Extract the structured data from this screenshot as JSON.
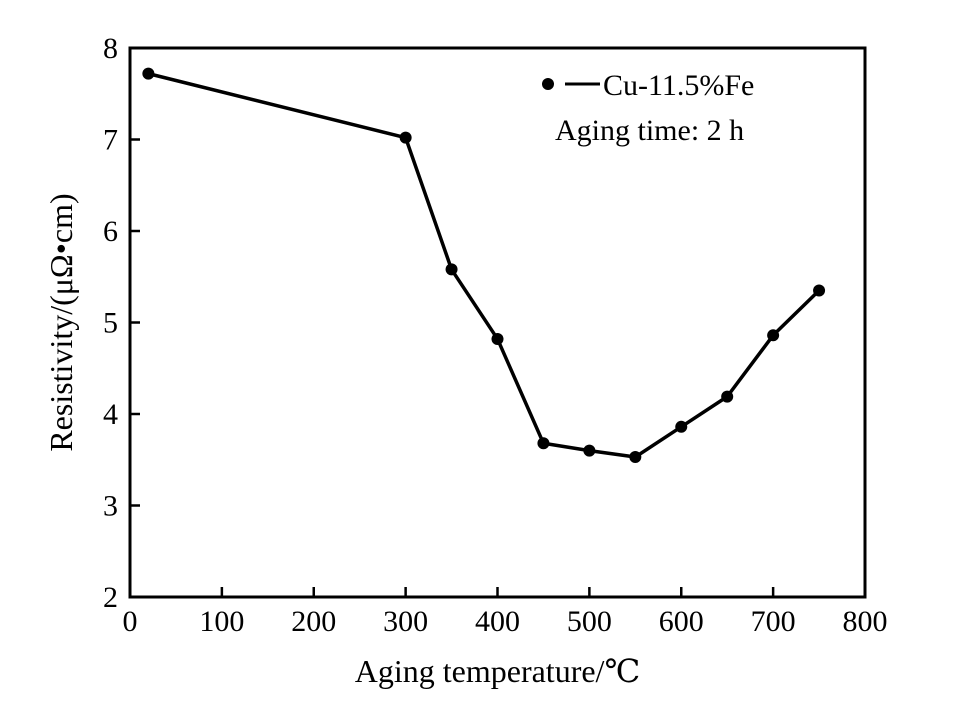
{
  "chart_data": {
    "type": "line",
    "title": "",
    "xlabel": "Aging temperature/℃",
    "ylabel": "Resistivity/(μΩ•cm)",
    "xlim": [
      0,
      800
    ],
    "ylim": [
      2,
      8
    ],
    "xticks": [
      0,
      100,
      200,
      300,
      400,
      500,
      600,
      700,
      800
    ],
    "yticks": [
      2,
      3,
      4,
      5,
      6,
      7,
      8
    ],
    "grid": false,
    "legend_position": "top-right",
    "annotation": "Aging time: 2 h",
    "series": [
      {
        "name": "Cu-11.5%Fe",
        "marker": "circle",
        "color": "#000000",
        "x": [
          20,
          300,
          350,
          400,
          450,
          500,
          550,
          600,
          650,
          700,
          750
        ],
        "y": [
          7.72,
          7.02,
          5.58,
          4.82,
          3.68,
          3.6,
          3.53,
          3.86,
          4.19,
          4.86,
          5.35
        ]
      }
    ]
  }
}
